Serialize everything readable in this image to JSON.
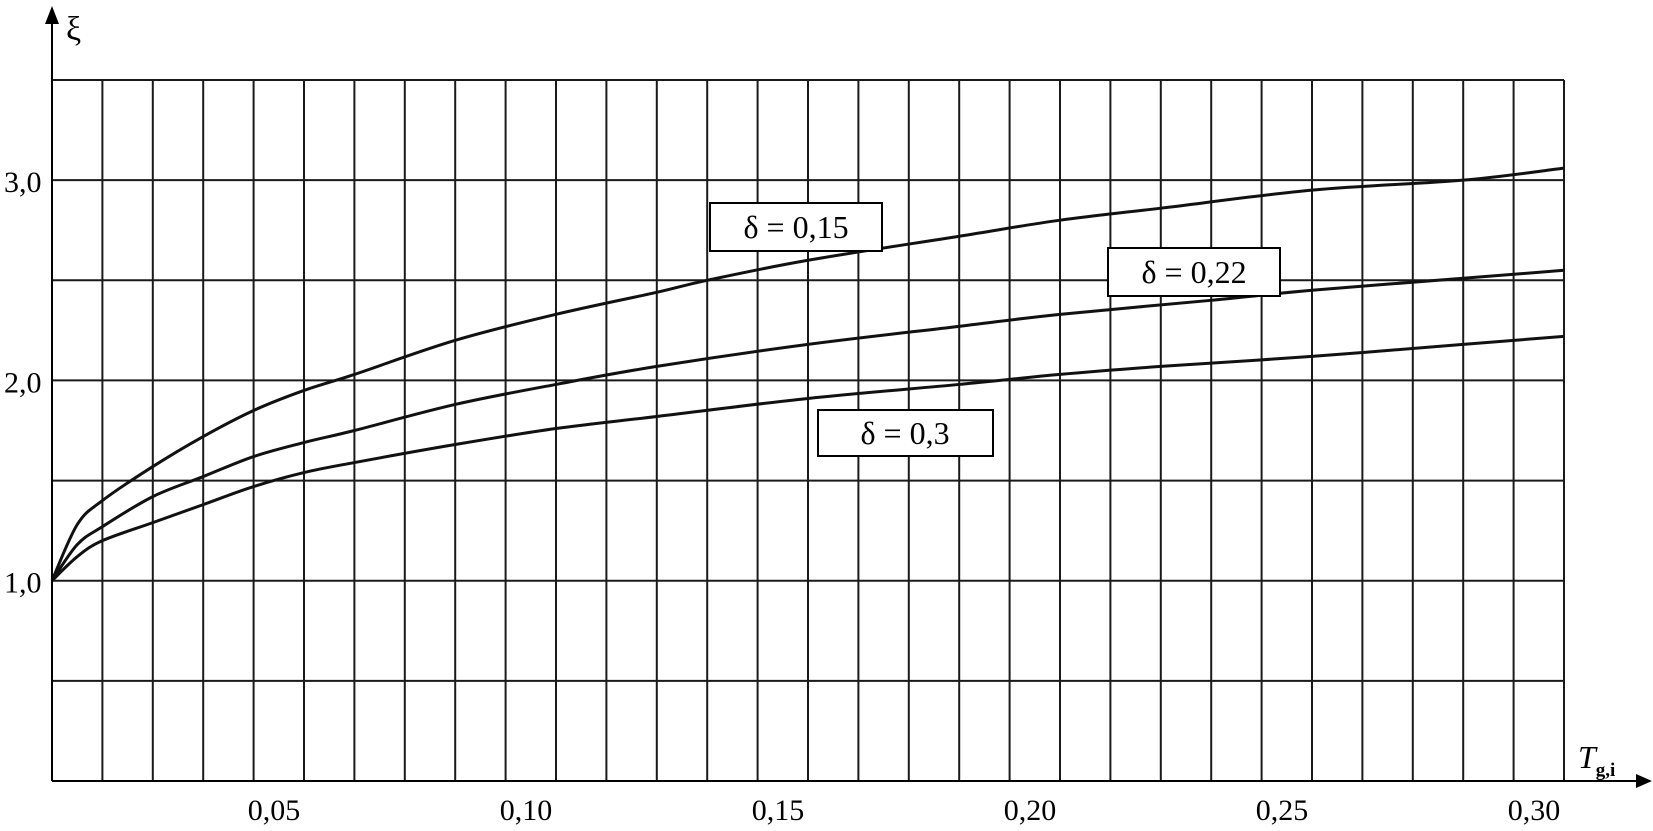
{
  "chart_data": {
    "type": "line",
    "xlabel": "T",
    "xlabel_sub": "g,i",
    "ylabel": "ξ",
    "xlim": [
      0,
      0.3
    ],
    "ylim": [
      0,
      3.5
    ],
    "grid": true,
    "x_ticks": [
      {
        "value": 0.05,
        "label": "0,05"
      },
      {
        "value": 0.1,
        "label": "0,10"
      },
      {
        "value": 0.15,
        "label": "0,15"
      },
      {
        "value": 0.2,
        "label": "0,20"
      },
      {
        "value": 0.25,
        "label": "0,25"
      },
      {
        "value": 0.3,
        "label": "0,30"
      }
    ],
    "y_ticks": [
      {
        "value": 1.0,
        "label": "1,0"
      },
      {
        "value": 2.0,
        "label": "2,0"
      },
      {
        "value": 3.0,
        "label": "3,0"
      }
    ],
    "x_grid_step": 0.01,
    "y_grid_step": 0.5,
    "series": [
      {
        "name": "δ = 0,15",
        "x": [
          0,
          0.005,
          0.01,
          0.02,
          0.03,
          0.04,
          0.05,
          0.06,
          0.08,
          0.1,
          0.12,
          0.13,
          0.15,
          0.18,
          0.2,
          0.22,
          0.25,
          0.28,
          0.3
        ],
        "y": [
          1.0,
          1.28,
          1.4,
          1.57,
          1.72,
          1.85,
          1.95,
          2.03,
          2.2,
          2.33,
          2.44,
          2.5,
          2.6,
          2.72,
          2.8,
          2.86,
          2.95,
          3.0,
          3.06
        ]
      },
      {
        "name": "δ = 0,22",
        "x": [
          0,
          0.005,
          0.01,
          0.02,
          0.03,
          0.04,
          0.05,
          0.06,
          0.08,
          0.1,
          0.12,
          0.15,
          0.18,
          0.2,
          0.23,
          0.25,
          0.28,
          0.3
        ],
        "y": [
          1.0,
          1.18,
          1.27,
          1.42,
          1.52,
          1.62,
          1.69,
          1.75,
          1.88,
          1.98,
          2.07,
          2.18,
          2.27,
          2.33,
          2.4,
          2.45,
          2.51,
          2.55
        ]
      },
      {
        "name": "δ = 0,3",
        "x": [
          0,
          0.005,
          0.01,
          0.02,
          0.03,
          0.04,
          0.05,
          0.06,
          0.08,
          0.1,
          0.12,
          0.15,
          0.18,
          0.2,
          0.22,
          0.25,
          0.28,
          0.3
        ],
        "y": [
          1.0,
          1.12,
          1.2,
          1.29,
          1.38,
          1.47,
          1.54,
          1.59,
          1.68,
          1.76,
          1.82,
          1.91,
          1.98,
          2.03,
          2.07,
          2.12,
          2.18,
          2.22
        ]
      }
    ]
  }
}
